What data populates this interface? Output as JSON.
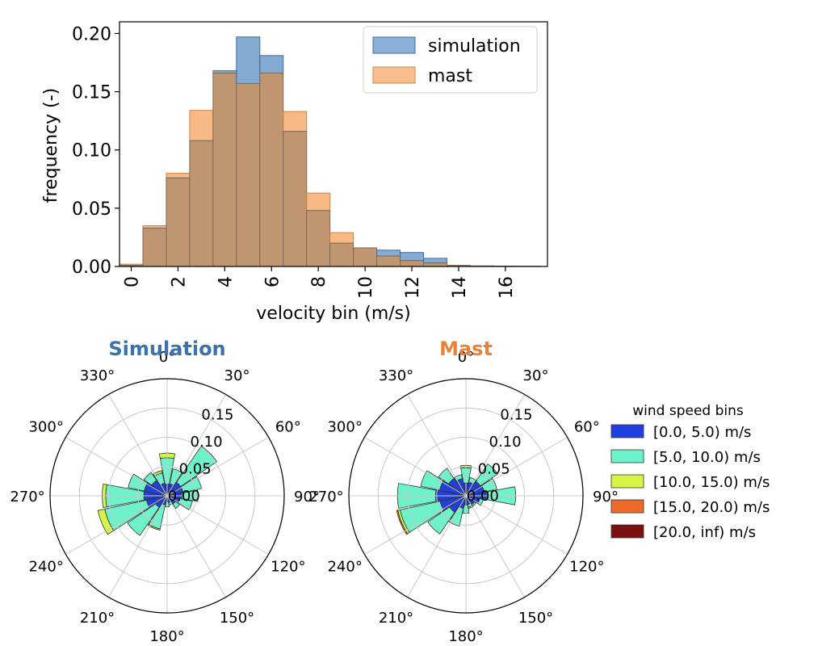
{
  "chart_data": [
    {
      "type": "bar",
      "subtype": "histogram",
      "xlabel": "velocity bin (m/s)",
      "ylabel": "frequency (-)",
      "ylim": [
        0,
        0.21
      ],
      "xlim": [
        -0.5,
        17.8
      ],
      "bin_width": 1,
      "bin_starts": [
        -0.5,
        0.5,
        1.5,
        2.5,
        3.5,
        4.5,
        5.5,
        6.5,
        7.5,
        8.5,
        9.5,
        10.5,
        11.5,
        12.5,
        13.5,
        14.5,
        15.5,
        16.5
      ],
      "xticks": [
        0,
        2,
        4,
        6,
        8,
        10,
        12,
        14,
        16
      ],
      "xtick_labels": [
        "0",
        "2",
        "4",
        "6",
        "8",
        "10",
        "12",
        "14",
        "16"
      ],
      "yticks": [
        0,
        0.05,
        0.1,
        0.15,
        0.2
      ],
      "ytick_labels": [
        "0.00",
        "0.05",
        "0.10",
        "0.15",
        "0.20"
      ],
      "legend_position": "top-right",
      "series": [
        {
          "name": "simulation",
          "color": "#5b8fc3",
          "values": [
            0.001,
            0.033,
            0.076,
            0.108,
            0.168,
            0.197,
            0.181,
            0.116,
            0.048,
            0.02,
            0.016,
            0.014,
            0.012,
            0.007,
            0.001,
            0.0005,
            0.0003,
            0.0002
          ]
        },
        {
          "name": "mast",
          "color": "#f5a25d",
          "values": [
            0.002,
            0.035,
            0.08,
            0.134,
            0.166,
            0.157,
            0.166,
            0.133,
            0.063,
            0.029,
            0.016,
            0.009,
            0.005,
            0.003,
            0.001,
            0.0005,
            0.0002,
            0.0001
          ]
        }
      ],
      "overlap_color": "#c09670"
    },
    {
      "type": "wind-rose",
      "title": "Simulation",
      "title_color": "#3a72b0",
      "directions_deg": [
        0,
        22.5,
        45,
        67.5,
        90,
        112.5,
        135,
        157.5,
        180,
        202.5,
        225,
        247.5,
        270,
        292.5,
        315,
        337.5
      ],
      "bins": [
        {
          "label": "[0.0, 5.0) m/s",
          "values": [
            0.02,
            0.021,
            0.028,
            0.028,
            0.025,
            0.022,
            0.017,
            0.012,
            0.01,
            0.016,
            0.024,
            0.036,
            0.04,
            0.04,
            0.032,
            0.022
          ]
        },
        {
          "label": "[5.0, 10.0) m/s",
          "values": [
            0.045,
            0.026,
            0.075,
            0.032,
            0.028,
            0.022,
            0.009,
            0.004,
            0.009,
            0.042,
            0.058,
            0.073,
            0.065,
            0.028,
            0.016,
            0.018
          ]
        },
        {
          "label": "[10.0, 15.0) m/s",
          "values": [
            0.008,
            0.0,
            0.0,
            0.0,
            0.0,
            0.0,
            0.0,
            0.0,
            0.0,
            0.002,
            0.0,
            0.012,
            0.006,
            0.0,
            0.0,
            0.004
          ]
        },
        {
          "label": "[15.0, 20.0) m/s",
          "values": [
            0,
            0,
            0,
            0,
            0,
            0,
            0,
            0,
            0,
            0,
            0,
            0,
            0,
            0,
            0,
            0
          ]
        },
        {
          "label": "[20.0, inf) m/s",
          "values": [
            0,
            0,
            0,
            0,
            0,
            0,
            0,
            0,
            0,
            0,
            0,
            0,
            0,
            0,
            0,
            0
          ]
        }
      ],
      "rlim": [
        0,
        0.2
      ],
      "rticks": [
        0,
        0.05,
        0.1,
        0.15
      ],
      "rtick_labels": [
        "0.00",
        "0.05",
        "0.10",
        "0.15"
      ],
      "angle_ticks_deg": [
        0,
        30,
        60,
        90,
        120,
        150,
        180,
        210,
        240,
        270,
        300,
        330
      ],
      "angle_tick_labels": [
        "0°",
        "30°",
        "60°",
        "90°",
        "120°",
        "150°",
        "180°",
        "210°",
        "240°",
        "270°",
        "300°",
        "330°"
      ]
    },
    {
      "type": "wind-rose",
      "title": "Mast",
      "title_color": "#e8823a",
      "directions_deg": [
        0,
        22.5,
        45,
        67.5,
        90,
        112.5,
        135,
        157.5,
        180,
        202.5,
        225,
        247.5,
        270,
        292.5,
        315,
        337.5
      ],
      "bins": [
        {
          "label": "[0.0, 5.0) m/s",
          "values": [
            0.022,
            0.024,
            0.03,
            0.032,
            0.035,
            0.024,
            0.018,
            0.015,
            0.016,
            0.022,
            0.034,
            0.045,
            0.052,
            0.046,
            0.036,
            0.03
          ]
        },
        {
          "label": "[5.0, 10.0) m/s",
          "values": [
            0.026,
            0.008,
            0.036,
            0.022,
            0.05,
            0.006,
            0.003,
            0.005,
            0.014,
            0.031,
            0.045,
            0.07,
            0.065,
            0.033,
            0.021,
            0.007
          ]
        },
        {
          "label": "[10.0, 15.0) m/s",
          "values": [
            0.004,
            0.0,
            0.0,
            0.0,
            0.0,
            0.0,
            0.0,
            0.002,
            0.0,
            0.0,
            0.0,
            0.004,
            0.0,
            0.0,
            0.0,
            0.0
          ]
        },
        {
          "label": "[15.0, 20.0) m/s",
          "values": [
            0,
            0,
            0,
            0,
            0,
            0,
            0,
            0,
            0,
            0,
            0,
            0.002,
            0,
            0,
            0,
            0
          ]
        },
        {
          "label": "[20.0, inf) m/s",
          "values": [
            0,
            0,
            0,
            0,
            0,
            0,
            0,
            0,
            0,
            0,
            0,
            0,
            0,
            0,
            0,
            0
          ]
        }
      ],
      "rlim": [
        0,
        0.2
      ],
      "rticks": [
        0,
        0.05,
        0.1,
        0.15
      ],
      "rtick_labels": [
        "0.00",
        "0.05",
        "0.10",
        "0.15"
      ],
      "angle_ticks_deg": [
        0,
        30,
        60,
        90,
        120,
        150,
        180,
        210,
        240,
        270,
        300,
        330
      ],
      "angle_tick_labels": [
        "0°",
        "30°",
        "60°",
        "90°",
        "120°",
        "150°",
        "180°",
        "210°",
        "240°",
        "270°",
        "300°",
        "330°"
      ]
    }
  ],
  "legend": {
    "title": "wind speed bins",
    "entries": [
      {
        "label": "[0.0, 5.0) m/s",
        "color": "#1f3fe0"
      },
      {
        "label": "[5.0, 10.0) m/s",
        "color": "#6ef2cc"
      },
      {
        "label": "[10.0, 15.0) m/s",
        "color": "#d4f545"
      },
      {
        "label": "[15.0, 20.0) m/s",
        "color": "#ee6a2a"
      },
      {
        "label": "[20.0, inf) m/s",
        "color": "#7a1010"
      }
    ]
  }
}
